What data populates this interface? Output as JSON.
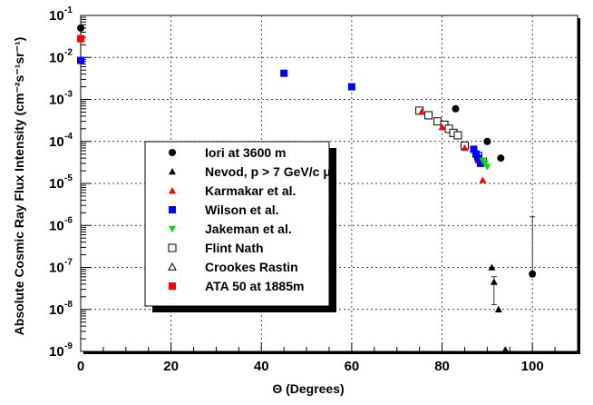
{
  "chart_data": {
    "type": "scatter",
    "xlabel": "Θ (Degrees)",
    "ylabel": "Absolute Cosmic Ray Flux Intensity (cm⁻²s⁻¹sr⁻¹)",
    "xlim": [
      0,
      110
    ],
    "ylim": [
      1e-09,
      0.1
    ],
    "y_scale": "log",
    "grid": true,
    "legend_position": "center-left",
    "x_ticks": [
      "0",
      "20",
      "40",
      "60",
      "80",
      "100"
    ],
    "y_ticks": [
      {
        "base": "10",
        "exp": "-9",
        "value": 1e-09
      },
      {
        "base": "10",
        "exp": "-8",
        "value": 1e-08
      },
      {
        "base": "10",
        "exp": "-7",
        "value": 1e-07
      },
      {
        "base": "10",
        "exp": "-6",
        "value": 1e-06
      },
      {
        "base": "10",
        "exp": "-5",
        "value": 1e-05
      },
      {
        "base": "10",
        "exp": "-4",
        "value": 0.0001
      },
      {
        "base": "10",
        "exp": "-3",
        "value": 0.001
      },
      {
        "base": "10",
        "exp": "-2",
        "value": 0.01
      },
      {
        "base": "10",
        "exp": "-1",
        "value": 0.1
      }
    ],
    "series": [
      {
        "name": "Iori at 3600 m",
        "marker": "circle-filled",
        "color": "#000000",
        "points": [
          [
            0,
            0.05
          ],
          [
            83,
            0.0006
          ],
          [
            90,
            0.0001
          ],
          [
            93,
            4e-05
          ],
          [
            100,
            7e-08
          ]
        ],
        "errors": [
          null,
          null,
          null,
          null,
          [
            6e-08,
            1.6e-06
          ]
        ]
      },
      {
        "name": "Nevod, p > 7 GeV/c μ",
        "marker": "triangle-filled",
        "color": "#000000",
        "points": [
          [
            91,
            1e-07
          ],
          [
            91.5,
            4.5e-08
          ],
          [
            92.5,
            1e-08
          ],
          [
            94,
            1.1e-09
          ]
        ],
        "errors": [
          null,
          [
            1.3e-08,
            6e-08
          ],
          null,
          null
        ]
      },
      {
        "name": "Karmakar et al.",
        "marker": "triangle-filled",
        "color": "#ff0000",
        "points": [
          [
            75.5,
            0.00051
          ],
          [
            80,
            0.00022
          ],
          [
            85,
            7e-05
          ],
          [
            88,
            3.5e-05
          ],
          [
            89,
            1.2e-05
          ]
        ]
      },
      {
        "name": "Wilson et al.",
        "marker": "square-filled",
        "color": "#0000ff",
        "points": [
          [
            0,
            0.0085
          ],
          [
            45,
            0.0042
          ],
          [
            60,
            0.002
          ],
          [
            87,
            6.5e-05
          ],
          [
            87.5,
            5e-05
          ],
          [
            88,
            4e-05
          ],
          [
            88.5,
            3e-05
          ]
        ]
      },
      {
        "name": "Jakeman et al.",
        "marker": "triangle-down-filled",
        "color": "#00dd00",
        "points": [
          [
            89,
            3.5e-05
          ],
          [
            89.5,
            3e-05
          ],
          [
            90,
            2.5e-05
          ]
        ]
      },
      {
        "name": "Flint Nath",
        "marker": "square-open",
        "color": "#000000",
        "points": [
          [
            75,
            0.00054
          ],
          [
            77,
            0.00042
          ],
          [
            79,
            0.0003
          ],
          [
            80.5,
            0.00025
          ],
          [
            81.5,
            0.0002
          ],
          [
            82.5,
            0.00016
          ],
          [
            83.5,
            0.00014
          ],
          [
            85,
            8e-05
          ],
          [
            88,
            4.5e-05
          ],
          [
            89,
            3.3e-05
          ]
        ]
      },
      {
        "name": "Crookes Rastin",
        "marker": "triangle-open",
        "color": "#000000",
        "points": []
      },
      {
        "name": "ATA 50 at 1885m",
        "marker": "square-filled",
        "color": "#ff0000",
        "points": [
          [
            0,
            0.028
          ]
        ]
      }
    ]
  }
}
